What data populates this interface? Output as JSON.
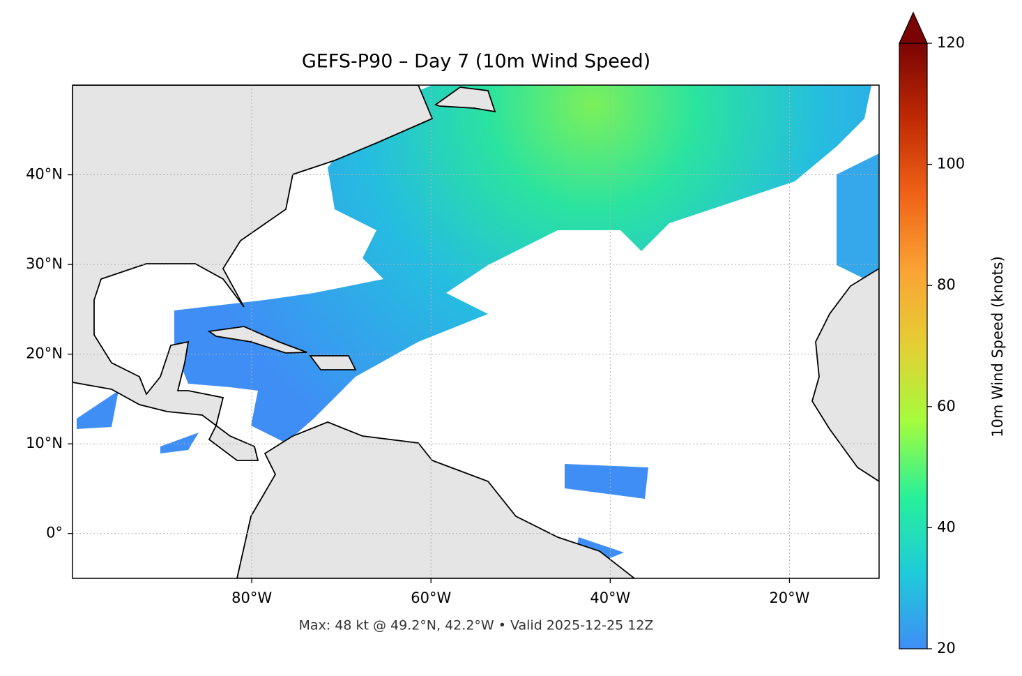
{
  "chart_data": {
    "type": "map",
    "title": "GEFS-P90 – Day 7 (10m Wind Speed)",
    "footer": "Max: 48 kt @ 49.2°N, 42.2°W • Valid 2025-12-25 12Z",
    "xlim": [
      -100,
      -10
    ],
    "ylim": [
      -5,
      50
    ],
    "xticks": [
      {
        "value": -80,
        "label": "80°W"
      },
      {
        "value": -60,
        "label": "60°W"
      },
      {
        "value": -40,
        "label": "40°W"
      },
      {
        "value": -20,
        "label": "20°W"
      }
    ],
    "yticks": [
      {
        "value": 0,
        "label": "0°"
      },
      {
        "value": 10,
        "label": "10°N"
      },
      {
        "value": 20,
        "label": "20°N"
      },
      {
        "value": 30,
        "label": "30°N"
      },
      {
        "value": 40,
        "label": "40°N"
      }
    ],
    "grid": true,
    "colorbar": {
      "label": "10m Wind Speed (knots)",
      "clim": [
        20,
        120
      ],
      "ticks": [
        20,
        40,
        60,
        80,
        100,
        120
      ],
      "colormap": [
        "#3f8ef5",
        "#1ecbd9",
        "#27f09a",
        "#a4fc3c",
        "#e4cf34",
        "#fba334",
        "#f06317",
        "#c02a04",
        "#7a0403"
      ]
    }
  }
}
